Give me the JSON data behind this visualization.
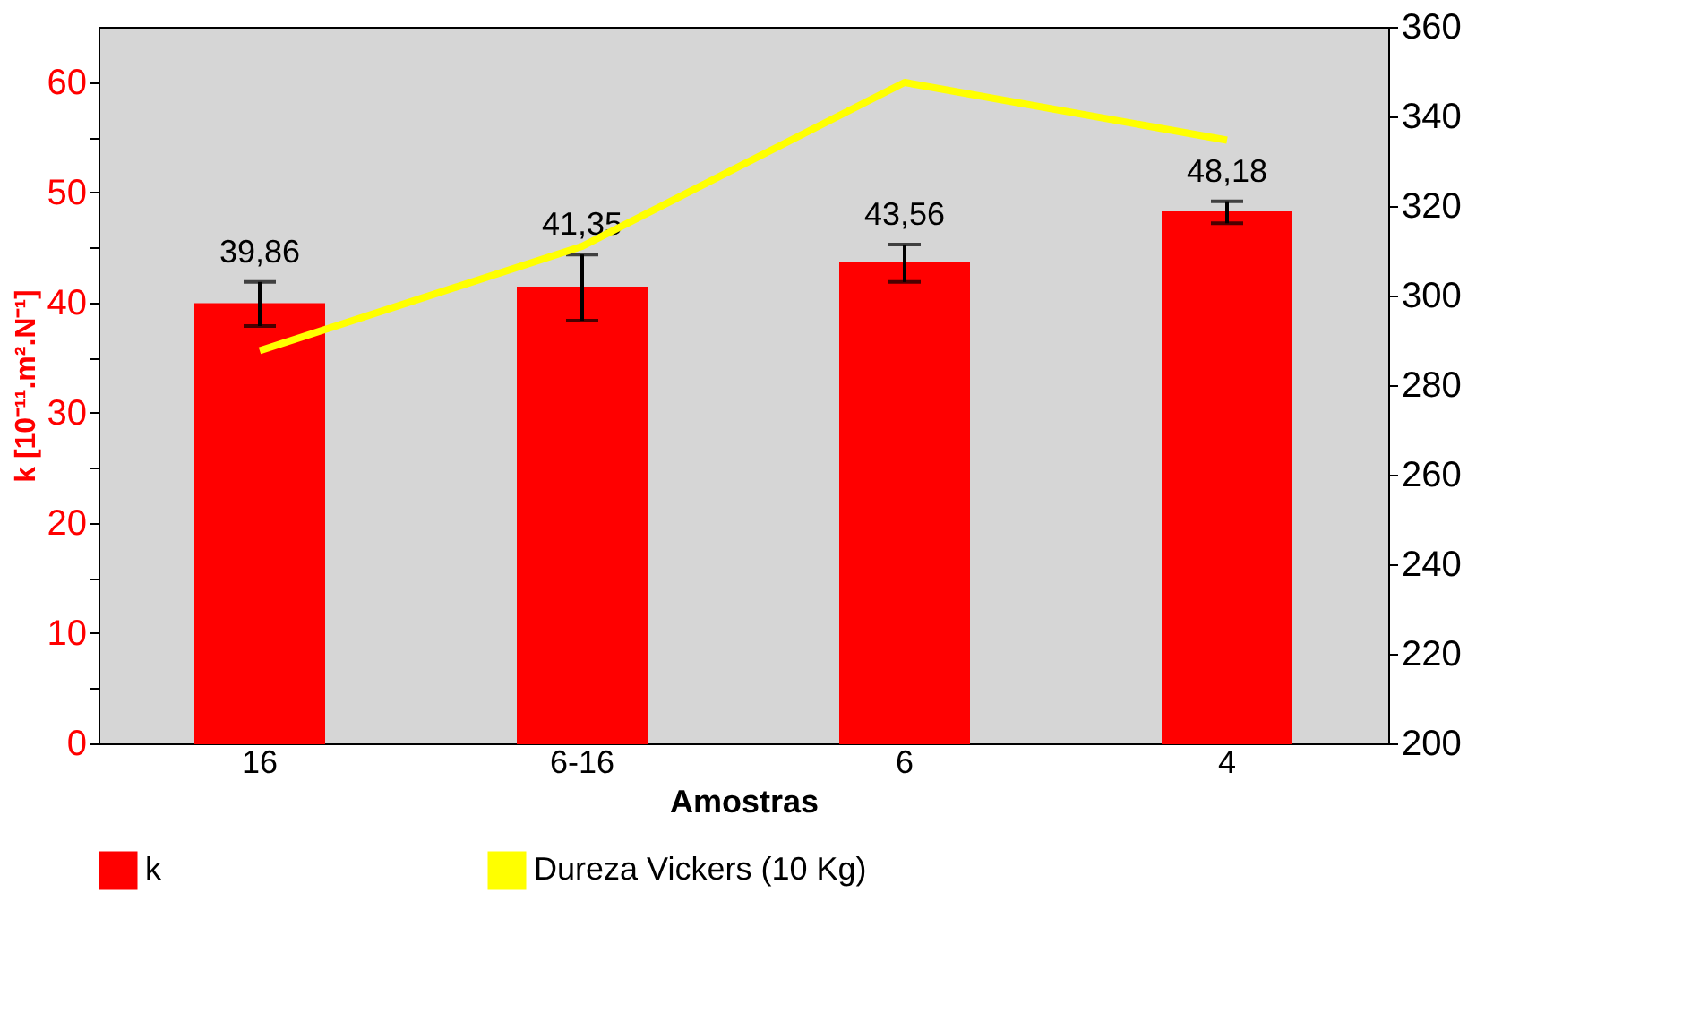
{
  "chart_data": {
    "type": "bar",
    "xlabel": "Amostras",
    "ylabel": "k [10⁻¹¹.m².N⁻¹]",
    "categories": [
      "16",
      "6-16",
      "6",
      "4"
    ],
    "series": [
      {
        "name": "k",
        "color": "#ff0000",
        "values": [
          39.86,
          41.35,
          43.56,
          48.18
        ],
        "errors": [
          2,
          3,
          1.7,
          1
        ],
        "value_labels": [
          "39,86",
          "41,35",
          "43,56",
          "48,18"
        ]
      },
      {
        "name": "Dureza Vickers          (10 Kg)",
        "type": "line",
        "axis": "y2",
        "color": "#ffff00",
        "values": [
          287.7,
          311,
          347.6,
          334.7
        ]
      }
    ],
    "ylim": [
      0,
      65
    ],
    "yticks": [
      0,
      {
        "value": 5,
        "label": null
      },
      10,
      {
        "value": 15,
        "label": null
      },
      20,
      {
        "value": 25,
        "label": null
      },
      30,
      {
        "value": 35,
        "label": null
      },
      40,
      {
        "value": 45,
        "label": null
      },
      50,
      {
        "value": 55,
        "label": null
      },
      60
    ],
    "y2lim": [
      200,
      360
    ],
    "y2ticks": [
      200,
      220,
      240,
      260,
      280,
      300,
      320,
      340,
      360
    ],
    "legend": "bottom",
    "grid": false
  }
}
